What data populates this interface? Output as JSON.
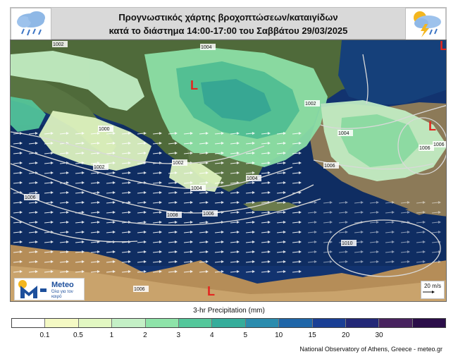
{
  "header": {
    "title_line1": "Προγνωστικός χάρτης βροχοπτώσεων/καταιγίδων",
    "title_line2": "κατά το διάστημα 14:00-17:00 του Σαββάτου 29/03/2025",
    "left_icon": "rain-cloud-icon",
    "right_icon": "thunderstorm-cloud-icon"
  },
  "map": {
    "isobars": [
      "1002",
      "1004",
      "1000",
      "1002",
      "1004",
      "1002",
      "1004",
      "1002",
      "1006",
      "1006",
      "1008",
      "1006",
      "1004",
      "1006",
      "1006",
      "1010",
      "1006"
    ],
    "low_marker": "L",
    "wind_scale_label": "20 m/s"
  },
  "logo": {
    "name": "Meteo",
    "slogan": "Όλα για τον καιρό"
  },
  "legend": {
    "title": "3-hr Precipitation (mm)",
    "ticks": [
      "0.1",
      "0.5",
      "1",
      "2",
      "3",
      "4",
      "5",
      "10",
      "15",
      "20",
      "30"
    ],
    "colors": [
      "#ffffff",
      "#f4f9c4",
      "#e2f7c2",
      "#c4f0c6",
      "#8ee3a9",
      "#54c79b",
      "#35ad9b",
      "#2b8cae",
      "#1f66a8",
      "#1a3f95",
      "#232877",
      "#48235f",
      "#2b0e49"
    ]
  },
  "credit": "National Observatory of Athens, Greece - meteo.gr"
}
